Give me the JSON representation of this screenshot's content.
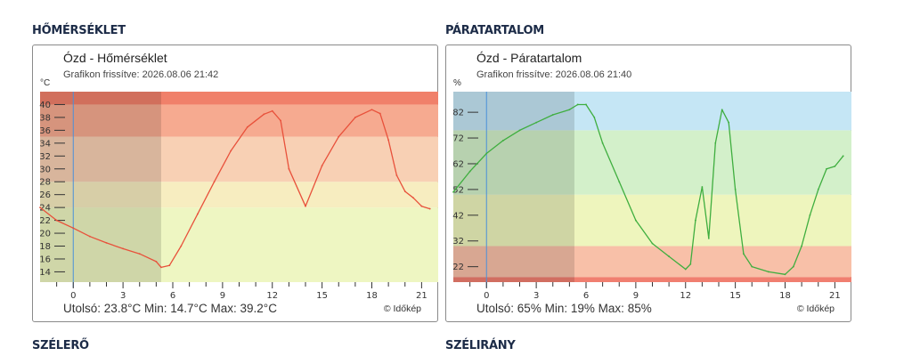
{
  "sections": {
    "temperature": "HŐMÉRSÉKLET",
    "humidity": "PÁRATARTALOM",
    "wind_speed": "SZÉLERŐ",
    "wind_direction": "SZÉLIRÁNY"
  },
  "temp_card": {
    "title": "Ózd - Hőmérséklet",
    "updated": "Grafikon frissítve: 2026.08.06 21:42",
    "unit": "°C",
    "last_label": "Utolsó:",
    "last_value": "23.8°C",
    "min_label": "Min:",
    "min_value": "14.7°C",
    "max_label": "Max:",
    "max_value": "39.2°C",
    "credit": "© Időkép"
  },
  "hum_card": {
    "title": "Ózd - Páratartalom",
    "updated": "Grafikon frissítve: 2026.08.06 21:40",
    "unit": "%",
    "last_label": "Utolsó:",
    "last_value": "65%",
    "min_label": "Min:",
    "min_value": "19%",
    "max_label": "Max:",
    "max_value": "85%",
    "credit": "© Időkép"
  },
  "colors": {
    "temp_line": "#e8513b",
    "hum_line": "#3fae3f",
    "now_line": "#4a90d9",
    "section_title": "#1c2b47"
  },
  "chart_data": [
    {
      "type": "line",
      "title": "Ózd - Hőmérséklet",
      "ylabel": "°C",
      "xlim": [
        -2,
        22
      ],
      "ylim": [
        12.4,
        42
      ],
      "xticks": [
        0,
        3,
        6,
        9,
        12,
        15,
        18,
        21
      ],
      "yticks": [
        14,
        16,
        18,
        20,
        22,
        24,
        26,
        28,
        30,
        32,
        34,
        36,
        38,
        40
      ],
      "bands": [
        {
          "from": 12.4,
          "to": 24,
          "color": "#eef6c2"
        },
        {
          "from": 24,
          "to": 28,
          "color": "#f7edc0"
        },
        {
          "from": 28,
          "to": 35,
          "color": "#f8d0b4"
        },
        {
          "from": 35,
          "to": 40,
          "color": "#f6aa90"
        },
        {
          "from": 40,
          "to": 42,
          "color": "#f0806a"
        }
      ],
      "now_x": 0,
      "past_shade_until": 5.3,
      "series": [
        {
          "x": [
            -2,
            -1,
            0,
            1,
            2,
            3,
            4,
            5,
            5.3,
            5.8,
            6.5,
            7.5,
            8.5,
            9.5,
            10.5,
            11.5,
            12,
            12.5,
            13,
            14,
            15,
            16,
            17,
            18,
            18.5,
            19,
            19.5,
            20,
            20.5,
            21,
            21.5
          ],
          "y": [
            24,
            22,
            20.8,
            19.5,
            18.5,
            17.6,
            16.8,
            15.6,
            14.7,
            15,
            18,
            23,
            28,
            32.8,
            36.5,
            38.5,
            39,
            37.5,
            30,
            24.2,
            30.5,
            35,
            38,
            39.2,
            38.6,
            34.5,
            29,
            26.5,
            25.5,
            24.2,
            23.8
          ]
        }
      ]
    },
    {
      "type": "line",
      "title": "Ózd - Páratartalom",
      "ylabel": "%",
      "xlim": [
        -2,
        22
      ],
      "ylim": [
        16,
        90
      ],
      "xticks": [
        0,
        3,
        6,
        9,
        12,
        15,
        18,
        21
      ],
      "yticks": [
        22,
        32,
        42,
        52,
        62,
        72,
        82
      ],
      "bands": [
        {
          "from": 16,
          "to": 18,
          "color": "#f07f70"
        },
        {
          "from": 18,
          "to": 30,
          "color": "#f8c0a8"
        },
        {
          "from": 30,
          "to": 50,
          "color": "#eef5bd"
        },
        {
          "from": 50,
          "to": 75,
          "color": "#d3f0ca"
        },
        {
          "from": 75,
          "to": 90,
          "color": "#c5e6f5"
        }
      ],
      "now_x": 0,
      "past_shade_until": 5.3,
      "series": [
        {
          "x": [
            -2,
            -1,
            0,
            1,
            2,
            3,
            4,
            5,
            5.5,
            6,
            6.5,
            7,
            8,
            9,
            10,
            11,
            12,
            12.3,
            12.6,
            13,
            13.4,
            13.8,
            14.2,
            14.6,
            15,
            15.5,
            16,
            17,
            18,
            18.5,
            19,
            19.5,
            20,
            20.5,
            21,
            21.5
          ],
          "y": [
            51,
            59,
            66,
            71,
            75,
            78,
            81,
            83,
            85,
            85,
            80,
            70,
            55,
            40,
            31,
            26,
            21,
            23,
            40,
            53,
            33,
            70,
            83,
            78,
            52,
            27,
            22,
            20,
            19,
            22,
            30,
            42,
            52,
            60,
            61,
            65
          ]
        }
      ]
    }
  ]
}
